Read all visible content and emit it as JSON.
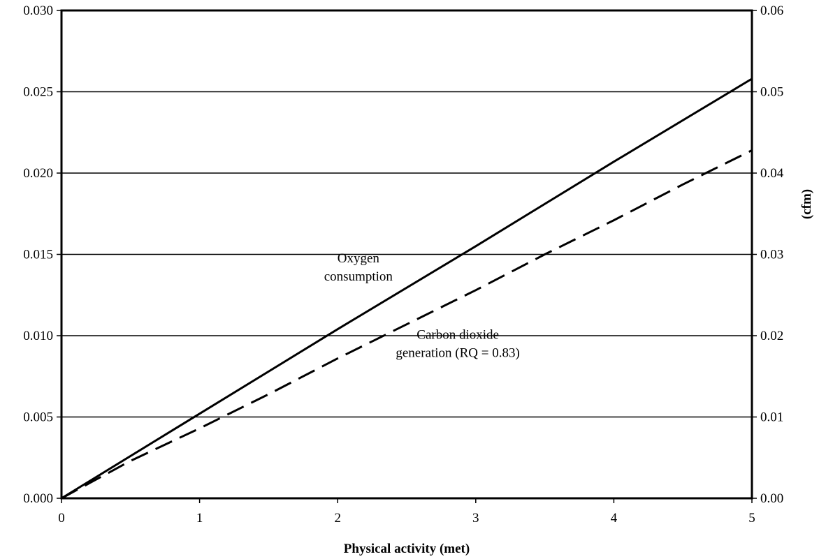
{
  "chart_data": {
    "type": "line",
    "xlabel": "Physical activity (met)",
    "ylabel": "",
    "y2label": "(cfm)",
    "xlim": [
      0,
      5
    ],
    "ylim": [
      0,
      0.03
    ],
    "y2lim": [
      0,
      0.06
    ],
    "grid": "horizontal",
    "x_ticks": [
      "0",
      "1",
      "2",
      "3",
      "4",
      "5"
    ],
    "y_ticks": [
      "0.000",
      "0.005",
      "0.010",
      "0.015",
      "0.020",
      "0.025",
      "0.030"
    ],
    "y2_ticks": [
      "0.00",
      "0.01",
      "0.02",
      "0.03",
      "0.04",
      "0.05",
      "0.06"
    ],
    "series": [
      {
        "style": "solid",
        "x": [
          0,
          1,
          2,
          3,
          4,
          5
        ],
        "y": [
          0,
          0.0052,
          0.0104,
          0.0155,
          0.0207,
          0.0258
        ]
      },
      {
        "style": "dashed",
        "x": [
          0,
          0.5,
          1,
          1.5,
          2,
          2.5,
          3,
          3.5,
          4,
          4.5,
          5
        ],
        "y": [
          0,
          0.0023,
          0.0043,
          0.0064,
          0.0086,
          0.0107,
          0.0128,
          0.015,
          0.0171,
          0.0193,
          0.0214
        ]
      }
    ],
    "annotations": [
      {
        "lines": [
          "Oxygen",
          "consumption"
        ],
        "x": 2.15,
        "y": 0.0145
      },
      {
        "lines": [
          "Carbon dioxide",
          "generation (RQ = 0.83)"
        ],
        "x": 2.87,
        "y": 0.0098
      }
    ]
  }
}
